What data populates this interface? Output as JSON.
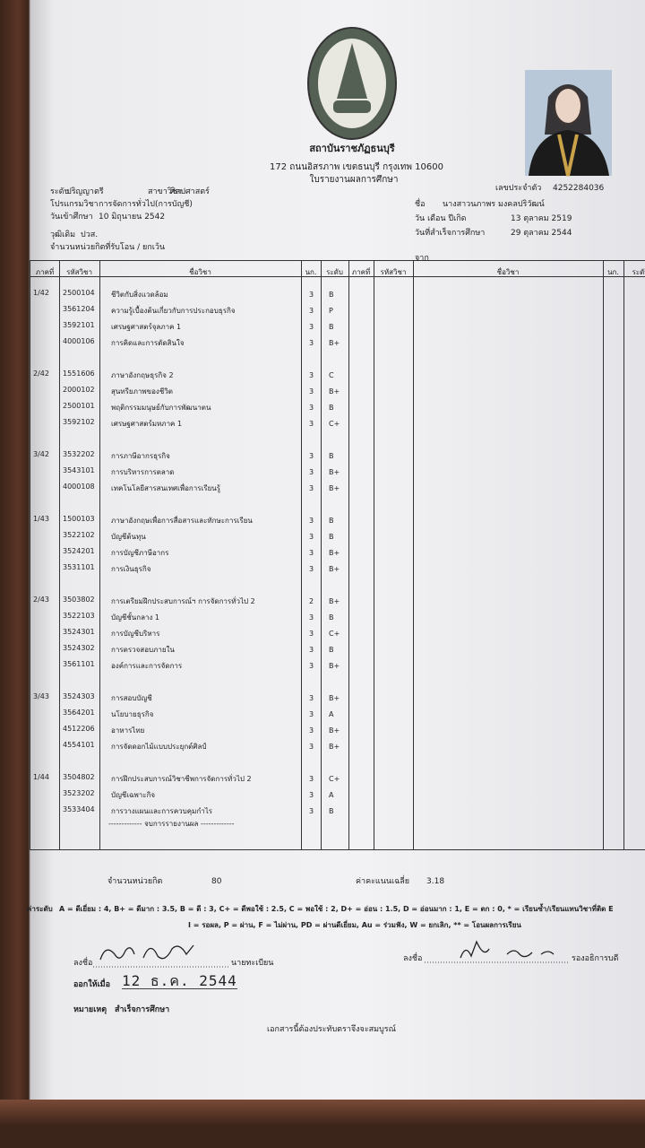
{
  "header": {
    "institution": "สถาบันราชภัฏธนบุรี",
    "address": "172 ถนนอิสรภาพ เขตธนบุรี กรุงเทพ 10600",
    "doc_title": "ใบรายงานผลการศึกษา"
  },
  "student_id": {
    "label": "เลขประจำตัว",
    "value": "4252284036"
  },
  "left_info": [
    {
      "label": "ระดับ",
      "value": "ปริญญาตรี"
    },
    {
      "label": "สาขาวิชา",
      "value": "ศิลปศาสตร์"
    },
    {
      "label": "โปรแกรมวิชา",
      "value": "การจัดการทั่วไป(การบัญชี)"
    },
    {
      "label": "วันเข้าศึกษา",
      "value": "10 มิถุนายน 2542"
    },
    {
      "label": "วุฒิเดิม",
      "value": "ปวส."
    },
    {
      "label": "จำนวนหน่วยกิตที่รับโอน / ยกเว้น"
    }
  ],
  "right_info": [
    {
      "label": "ชื่อ",
      "value": "นางสาวนภาพร มงคลปริวัฒน์"
    },
    {
      "label": "วัน เดือน ปีเกิด",
      "value": "13 ตุลาคม 2519"
    },
    {
      "label": "วันที่สำเร็จการศึกษา",
      "value": "29 ตุลาคม 2544"
    },
    {
      "label": "จาก"
    }
  ],
  "columns": [
    "ภาคที่",
    "รหัสวิชา",
    "ชื่อวิชา",
    "นก.",
    "ระดับ"
  ],
  "terms": [
    {
      "term": "1/42",
      "courses": [
        {
          "code": "2500104",
          "name": "ชีวิตกับสิ่งแวดล้อม",
          "credits": "3",
          "grade": "B"
        },
        {
          "code": "3561204",
          "name": "ความรู้เบื้องต้นเกี่ยวกับการประกอบธุรกิจ",
          "credits": "3",
          "grade": "P"
        },
        {
          "code": "3592101",
          "name": "เศรษฐศาสตร์จุลภาค 1",
          "credits": "3",
          "grade": "B"
        },
        {
          "code": "4000106",
          "name": "การคิดและการตัดสินใจ",
          "credits": "3",
          "grade": "B+"
        }
      ]
    },
    {
      "term": "2/42",
      "courses": [
        {
          "code": "1551606",
          "name": "ภาษาอังกฤษธุรกิจ 2",
          "credits": "3",
          "grade": "C"
        },
        {
          "code": "2000102",
          "name": "สุนทรียภาพของชีวิต",
          "credits": "3",
          "grade": "B+"
        },
        {
          "code": "2500101",
          "name": "พฤติกรรมมนุษย์กับการพัฒนาตน",
          "credits": "3",
          "grade": "B"
        },
        {
          "code": "3592102",
          "name": "เศรษฐศาสตร์มหภาค 1",
          "credits": "3",
          "grade": "C+"
        }
      ]
    },
    {
      "term": "3/42",
      "courses": [
        {
          "code": "3532202",
          "name": "การภาษีอากรธุรกิจ",
          "credits": "3",
          "grade": "B"
        },
        {
          "code": "3543101",
          "name": "การบริหารการตลาด",
          "credits": "3",
          "grade": "B+"
        },
        {
          "code": "4000108",
          "name": "เทคโนโลยีสารสนเทศเพื่อการเรียนรู้",
          "credits": "3",
          "grade": "B+"
        }
      ]
    },
    {
      "term": "1/43",
      "courses": [
        {
          "code": "1500103",
          "name": "ภาษาอังกฤษเพื่อการสื่อสารและทักษะการเรียน",
          "credits": "3",
          "grade": "B"
        },
        {
          "code": "3522102",
          "name": "บัญชีต้นทุน",
          "credits": "3",
          "grade": "B"
        },
        {
          "code": "3524201",
          "name": "การบัญชีภาษีอากร",
          "credits": "3",
          "grade": "B+"
        },
        {
          "code": "3531101",
          "name": "การเงินธุรกิจ",
          "credits": "3",
          "grade": "B+"
        }
      ]
    },
    {
      "term": "2/43",
      "courses": [
        {
          "code": "3503802",
          "name": "การเตรียมฝึกประสบการณ์ฯ การจัดการทั่วไป 2",
          "credits": "2",
          "grade": "B+"
        },
        {
          "code": "3522103",
          "name": "บัญชีชั้นกลาง 1",
          "credits": "3",
          "grade": "B"
        },
        {
          "code": "3524301",
          "name": "การบัญชีบริหาร",
          "credits": "3",
          "grade": "C+"
        },
        {
          "code": "3524302",
          "name": "การตรวจสอบภายใน",
          "credits": "3",
          "grade": "B"
        },
        {
          "code": "3561101",
          "name": "องค์การและการจัดการ",
          "credits": "3",
          "grade": "B+"
        }
      ]
    },
    {
      "term": "3/43",
      "courses": [
        {
          "code": "3524303",
          "name": "การสอบบัญชี",
          "credits": "3",
          "grade": "B+"
        },
        {
          "code": "3564201",
          "name": "นโยบายธุรกิจ",
          "credits": "3",
          "grade": "A"
        },
        {
          "code": "4512206",
          "name": "อาหารไทย",
          "credits": "3",
          "grade": "B+"
        },
        {
          "code": "4554101",
          "name": "การจัดดอกไม้แบบประยุกต์ศิลป์",
          "credits": "3",
          "grade": "B+"
        }
      ]
    },
    {
      "term": "1/44",
      "courses": [
        {
          "code": "3504802",
          "name": "การฝึกประสบการณ์วิชาชีพการจัดการทั่วไป 2",
          "credits": "3",
          "grade": "C+"
        },
        {
          "code": "3523202",
          "name": "บัญชีเฉพาะกิจ",
          "credits": "3",
          "grade": "A"
        },
        {
          "code": "3533404",
          "name": "การวางแผนและการควบคุมกำไร",
          "credits": "3",
          "grade": "B"
        }
      ]
    }
  ],
  "end_note": "------------- จบการรายงานผล -------------",
  "summary": {
    "credits_label": "จำนวนหน่วยกิต",
    "credits_value": "80",
    "gpa_label": "ค่าคะแนนเฉลี่ย",
    "gpa_value": "3.18"
  },
  "legend": {
    "label": "ค่าระดับ",
    "line1": "A = ดีเยี่ยม : 4, B+ = ดีมาก : 3.5, B = ดี : 3, C+ = ดีพอใช้ : 2.5, C = พอใช้ : 2, D+ = อ่อน : 1.5, D = อ่อนมาก : 1, E = ตก : 0, * = เรียนซ้ำ/เรียนแทนวิชาที่ติด E",
    "line2": "I = รอผล, P = ผ่าน, F = ไม่ผ่าน, PD = ผ่านดีเยี่ยม, Au = ร่วมฟัง, W = ยกเลิก, ** = โอนผลการเรียน"
  },
  "signatures": [
    {
      "prefix": "ลงชื่อ",
      "role": "นายทะเบียน"
    },
    {
      "prefix": "ลงชื่อ",
      "role": "รองอธิการบดี"
    }
  ],
  "issued": {
    "label": "ออกให้เมื่อ",
    "value": "12 ธ.ค. 2544"
  },
  "remark": {
    "label": "หมายเหตุ",
    "value": "สำเร็จการศึกษา"
  },
  "footer_note": "เอกสารนี้ต้องประทับตราจึงจะสมบูรณ์"
}
